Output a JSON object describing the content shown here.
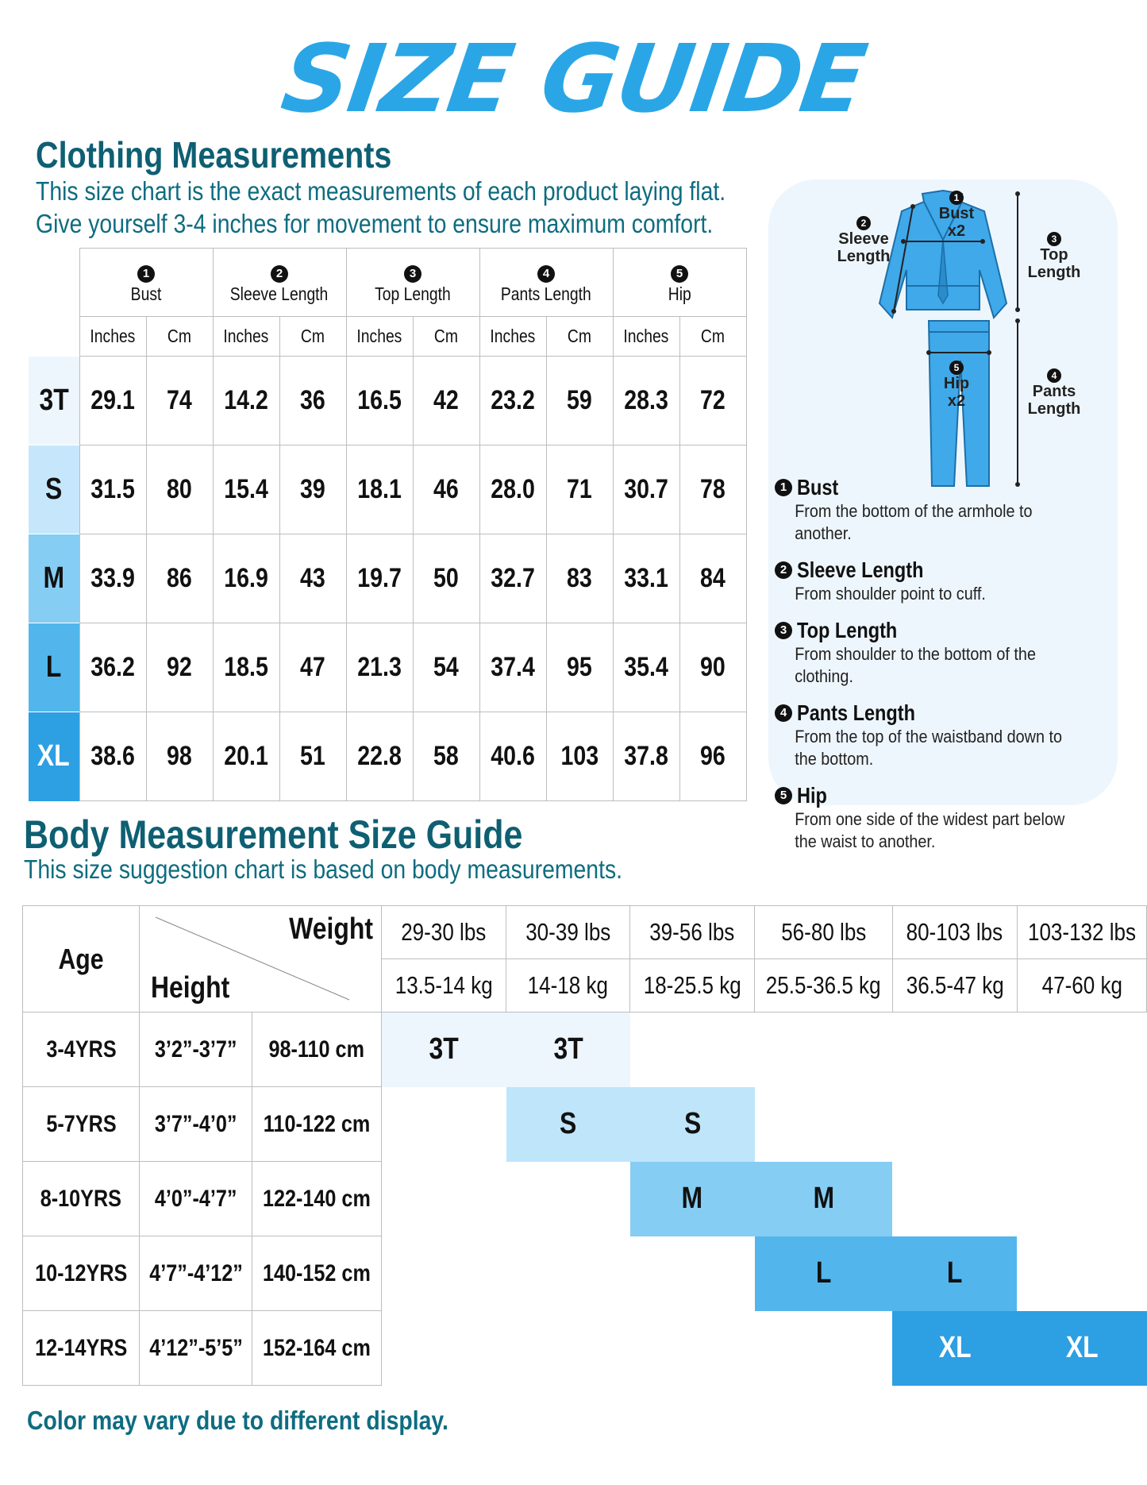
{
  "title": "SIZE GUIDE",
  "clothing": {
    "heading": "Clothing Measurements",
    "desc_line1": "This size chart is the exact measurements of each product laying flat.",
    "desc_line2": "Give yourself 3-4 inches for movement to ensure maximum comfort.",
    "columns": [
      {
        "num": "1",
        "label": "Bust"
      },
      {
        "num": "2",
        "label": "Sleeve Length"
      },
      {
        "num": "3",
        "label": "Top Length"
      },
      {
        "num": "4",
        "label": "Pants Length"
      },
      {
        "num": "5",
        "label": "Hip"
      }
    ],
    "unit_inches": "Inches",
    "unit_cm": "Cm",
    "rows": [
      {
        "size": "3T",
        "color": "#eef6fd",
        "text": "#111",
        "v": [
          "29.1",
          "74",
          "14.2",
          "36",
          "16.5",
          "42",
          "23.2",
          "59",
          "28.3",
          "72"
        ]
      },
      {
        "size": "S",
        "color": "#c6e7fb",
        "text": "#111",
        "v": [
          "31.5",
          "80",
          "15.4",
          "39",
          "18.1",
          "46",
          "28.0",
          "71",
          "30.7",
          "78"
        ]
      },
      {
        "size": "M",
        "color": "#86cdf3",
        "text": "#111",
        "v": [
          "33.9",
          "86",
          "16.9",
          "43",
          "19.7",
          "50",
          "32.7",
          "83",
          "33.1",
          "84"
        ]
      },
      {
        "size": "L",
        "color": "#52b6ec",
        "text": "#111",
        "v": [
          "36.2",
          "92",
          "18.5",
          "47",
          "21.3",
          "54",
          "37.4",
          "95",
          "35.4",
          "90"
        ]
      },
      {
        "size": "XL",
        "color": "#2d9fe3",
        "text": "#ffffff",
        "v": [
          "38.6",
          "98",
          "20.1",
          "51",
          "22.8",
          "58",
          "40.6",
          "103",
          "37.8",
          "96"
        ]
      }
    ]
  },
  "diagram": {
    "bust_num": "1",
    "bust_label": "Bust",
    "bust_mult": "x2",
    "sleeve_num": "2",
    "sleeve_l1": "Sleeve",
    "sleeve_l2": "Length",
    "top_num": "3",
    "top_l1": "Top",
    "top_l2": "Length",
    "pants_num": "4",
    "pants_l1": "Pants",
    "pants_l2": "Length",
    "hip_num": "5",
    "hip_label": "Hip",
    "hip_mult": "x2",
    "garment_color": "#3fa9ea",
    "definitions": [
      {
        "num": "1",
        "term": "Bust",
        "desc": "From the bottom of the armhole to another."
      },
      {
        "num": "2",
        "term": "Sleeve Length",
        "desc": "From shoulder point to cuff."
      },
      {
        "num": "3",
        "term": "Top Length",
        "desc": "From shoulder to the bottom of the clothing."
      },
      {
        "num": "4",
        "term": "Pants Length",
        "desc": "From the top of the waistband down to the bottom."
      },
      {
        "num": "5",
        "term": "Hip",
        "desc": "From one side of the widest part below the waist to another."
      }
    ]
  },
  "body": {
    "heading": "Body Measurement Size Guide",
    "desc": "This size suggestion chart is based on body measurements.",
    "age_label": "Age",
    "weight_label": "Weight",
    "height_label": "Height",
    "weights_lbs": [
      "29-30 lbs",
      "30-39 lbs",
      "39-56 lbs",
      "56-80 lbs",
      "80-103 lbs",
      "103-132 lbs"
    ],
    "weights_kg": [
      "13.5-14 kg",
      "14-18 kg",
      "18-25.5 kg",
      "25.5-36.5 kg",
      "36.5-47 kg",
      "47-60 kg"
    ],
    "rows": [
      {
        "age": "3-4YRS",
        "ft": "3’2”-3’7”",
        "cm": "98-110 cm",
        "size": "3T",
        "start": 0,
        "color": "#eef6fd",
        "text": "#111"
      },
      {
        "age": "5-7YRS",
        "ft": "3’7”-4’0”",
        "cm": "110-122 cm",
        "size": "S",
        "start": 1,
        "color": "#bfe5fb",
        "text": "#111"
      },
      {
        "age": "8-10YRS",
        "ft": "4’0”-4’7”",
        "cm": "122-140 cm",
        "size": "M",
        "start": 2,
        "color": "#86cdf3",
        "text": "#111"
      },
      {
        "age": "10-12YRS",
        "ft": "4’7”-4’12”",
        "cm": "140-152 cm",
        "size": "L",
        "start": 3,
        "color": "#52b6ec",
        "text": "#111"
      },
      {
        "age": "12-14YRS",
        "ft": "4’12”-5’5”",
        "cm": "152-164 cm",
        "size": "XL",
        "start": 4,
        "color": "#2d9fe3",
        "text": "#ffffff"
      }
    ]
  },
  "footer": "Color may vary due to different display."
}
